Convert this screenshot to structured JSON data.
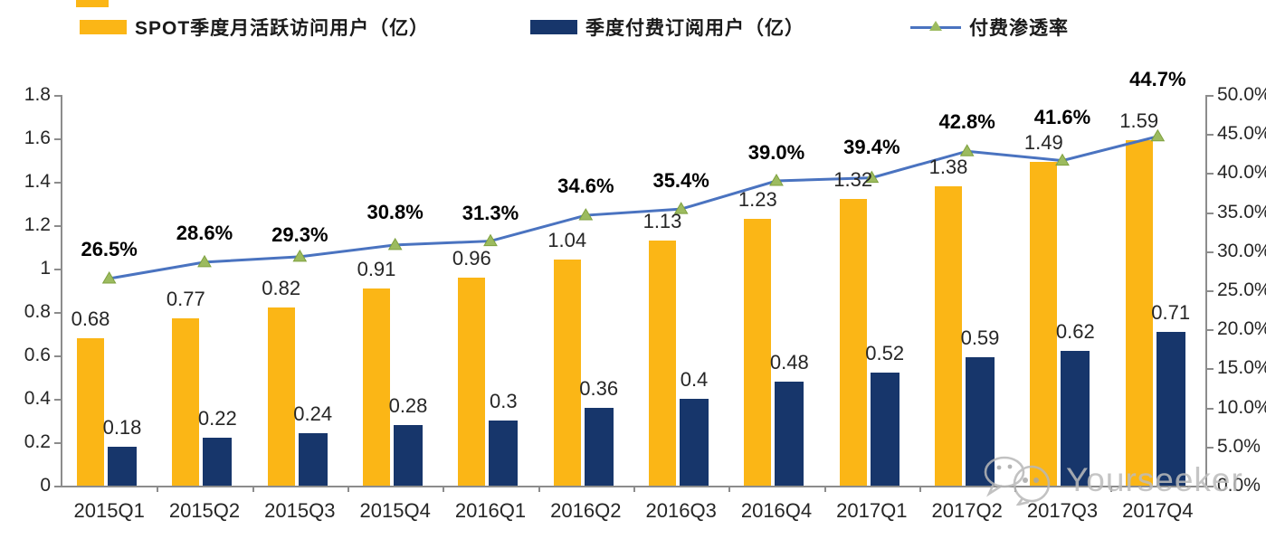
{
  "legend": [
    {
      "label": "SPOT季度月活跃访问用户（亿）",
      "type": "bar",
      "color": "#FBB616"
    },
    {
      "label": "季度付费订阅用户（亿）",
      "type": "bar",
      "color": "#17366B"
    },
    {
      "label": "付费渗透率",
      "type": "line",
      "color": "#4A73C0",
      "marker_color": "#9CBB5F"
    }
  ],
  "chart_data": {
    "type": "bar+line-combo",
    "title": "",
    "categories": [
      "2015Q1",
      "2015Q2",
      "2015Q3",
      "2015Q4",
      "2016Q1",
      "2016Q2",
      "2016Q3",
      "2016Q4",
      "2017Q1",
      "2017Q2",
      "2017Q3",
      "2017Q4"
    ],
    "series": [
      {
        "name": "SPOT季度月活跃访问用户（亿）",
        "type": "bar",
        "axis": "left",
        "color": "#FBB616",
        "values": [
          0.68,
          0.77,
          0.82,
          0.91,
          0.96,
          1.04,
          1.13,
          1.23,
          1.32,
          1.38,
          1.49,
          1.59
        ],
        "labels": [
          "0.68",
          "0.77",
          "0.82",
          "0.91",
          "0.96",
          "1.04",
          "1.13",
          "1.23",
          "1.32",
          "1.38",
          "1.49",
          "1.59"
        ]
      },
      {
        "name": "季度付费订阅用户（亿）",
        "type": "bar",
        "axis": "left",
        "color": "#17366B",
        "values": [
          0.18,
          0.22,
          0.24,
          0.28,
          0.3,
          0.36,
          0.4,
          0.48,
          0.52,
          0.59,
          0.62,
          0.71
        ],
        "labels": [
          "0.18",
          "0.22",
          "0.24",
          "0.28",
          "0.3",
          "0.36",
          "0.4",
          "0.48",
          "0.52",
          "0.59",
          "0.62",
          "0.71"
        ]
      },
      {
        "name": "付费渗透率",
        "type": "line",
        "axis": "right",
        "color": "#4A73C0",
        "marker": "triangle",
        "marker_color": "#9CBB5F",
        "values": [
          26.5,
          28.6,
          29.3,
          30.8,
          31.3,
          34.6,
          35.4,
          39.0,
          39.4,
          42.8,
          41.6,
          44.7
        ],
        "labels": [
          "26.5%",
          "28.6%",
          "29.3%",
          "30.8%",
          "31.3%",
          "34.6%",
          "35.4%",
          "39.0%",
          "39.4%",
          "42.8%",
          "41.6%",
          "44.7%"
        ]
      }
    ],
    "left_axis": {
      "min": 0,
      "max": 1.8,
      "ticks": [
        "0",
        "0.2",
        "0.4",
        "0.6",
        "0.8",
        "1",
        "1.2",
        "1.4",
        "1.6",
        "1.8"
      ]
    },
    "right_axis": {
      "min": 0,
      "max": 50,
      "ticks": [
        "0.0%",
        "5.0%",
        "10.0%",
        "15.0%",
        "20.0%",
        "25.0%",
        "30.0%",
        "35.0%",
        "40.0%",
        "45.0%",
        "50.0%"
      ]
    },
    "grid": false,
    "legend_position": "top",
    "pct_label_gaps": [
      20,
      20,
      12,
      24,
      19,
      20,
      19,
      19,
      22,
      20,
      36,
      51
    ]
  },
  "watermark": {
    "text": "Yourseeker",
    "icon": "wechat-icon"
  }
}
